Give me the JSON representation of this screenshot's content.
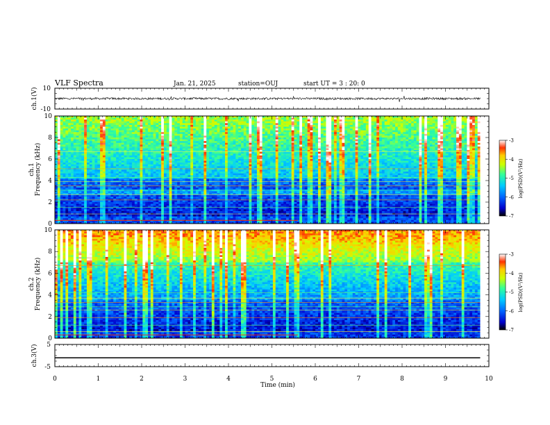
{
  "header": {
    "title": "VLF Spectra",
    "date": "Jan. 21, 2025",
    "station": "station=OUJ",
    "start_ut": "start UT =  3 : 20: 0"
  },
  "chart_data": [
    {
      "type": "line",
      "name": "ch1-waveform",
      "ylabel": "ch.1(V)",
      "ylim": [
        -10,
        10
      ],
      "yticks": [
        "10",
        "-10"
      ],
      "trace_level_V": 0,
      "trace_noise_amplitude_V": 2,
      "xlim": [
        0,
        10
      ]
    },
    {
      "type": "heatmap",
      "name": "ch1-spectrogram",
      "ylabel_top": "ch.1",
      "ylabel": "Frequency (kHz)",
      "ylim": [
        0,
        10
      ],
      "yticks": [
        "0",
        "2",
        "4",
        "6",
        "8",
        "10"
      ],
      "xlim": [
        0,
        10
      ],
      "data_end_min": 9.8,
      "colorbar": {
        "label": "log(PSD)(V²/Hz)",
        "range": [
          -7,
          -3
        ],
        "ticks": [
          "-3",
          "-4",
          "-5",
          "-6",
          "-7"
        ],
        "colors": [
          "#000000",
          "#0000cc",
          "#0066ff",
          "#00ccff",
          "#33ff99",
          "#ccff00",
          "#ffcc00",
          "#ff3300",
          "#ffffff"
        ]
      }
    },
    {
      "type": "heatmap",
      "name": "ch2-spectrogram",
      "ylabel_top": "ch.2",
      "ylabel": "Frequency (kHz)",
      "ylim": [
        0,
        10
      ],
      "yticks": [
        "0",
        "2",
        "4",
        "6",
        "8",
        "10"
      ],
      "xlim": [
        0,
        10
      ],
      "data_end_min": 9.8,
      "colorbar": {
        "label": "log(PSD)(V²/Hz)",
        "range": [
          -7,
          -3
        ],
        "ticks": [
          "-3",
          "-4",
          "-5",
          "-6",
          "-7"
        ],
        "colors": [
          "#000000",
          "#0000cc",
          "#0066ff",
          "#00ccff",
          "#33ff99",
          "#ccff00",
          "#ffcc00",
          "#ff3300",
          "#ffffff"
        ]
      }
    },
    {
      "type": "line",
      "name": "ch3-waveform",
      "ylabel": "ch.3(V)",
      "ylim": [
        -5,
        5
      ],
      "yticks": [
        "5",
        "-5"
      ],
      "trace_level_V": -1,
      "xlim": [
        0,
        10
      ],
      "xlabel": "Time (min)",
      "xticks": [
        "0",
        "1",
        "2",
        "3",
        "4",
        "5",
        "6",
        "7",
        "8",
        "9",
        "10"
      ]
    }
  ]
}
